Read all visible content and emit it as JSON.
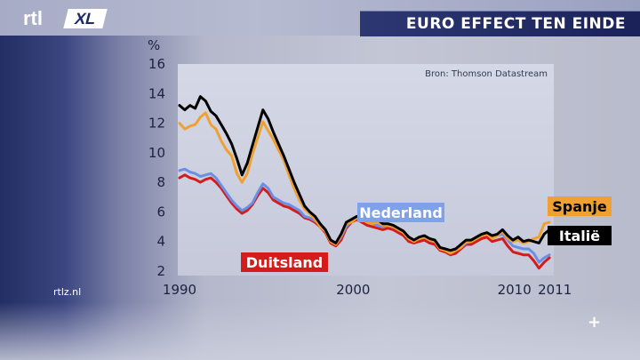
{
  "header": {
    "logo_text": "rtl",
    "logo_badge": "XL",
    "title": "EURO EFFECT TEN EINDE"
  },
  "footer": {
    "site": "rtlz.nl",
    "plus_icon": "plus-icon"
  },
  "colors": {
    "spanje": "#f0a030",
    "italie": "#000000",
    "nederland": "#6a90e6",
    "duitsland": "#d41c1c"
  },
  "chart_data": {
    "type": "line",
    "ylabel": "%",
    "ylim": [
      2,
      16
    ],
    "yticks": [
      2,
      4,
      6,
      8,
      10,
      12,
      14,
      16
    ],
    "xlim": [
      1990,
      2011.5
    ],
    "xtick_labels": [
      {
        "x": 1990,
        "label": "1990"
      },
      {
        "x": 2000,
        "label": "2000"
      },
      {
        "x": 2010,
        "label": "2010"
      },
      {
        "x": 2011,
        "label": "2011"
      }
    ],
    "source": "Bron: Thomson Datastream",
    "grid": false,
    "series": [
      {
        "name": "Nederland",
        "color": "#6a90e6",
        "x": [
          1990.0,
          1990.3,
          1990.6,
          1990.9,
          1991.2,
          1991.5,
          1991.8,
          1992.1,
          1992.4,
          1992.7,
          1993.0,
          1993.3,
          1993.6,
          1993.9,
          1994.2,
          1994.5,
          1994.8,
          1995.1,
          1995.4,
          1995.7,
          1996.0,
          1996.3,
          1996.6,
          1996.9,
          1997.2,
          1997.5,
          1997.8,
          1998.1,
          1998.4,
          1998.7,
          1999.0,
          1999.3,
          1999.6,
          1999.9,
          2000.2,
          2000.5,
          2000.8,
          2001.1,
          2001.4,
          2001.7,
          2002.0,
          2002.3,
          2002.6,
          2002.9,
          2003.2,
          2003.5,
          2003.8,
          2004.1,
          2004.4,
          2004.7,
          2005.0,
          2005.3,
          2005.6,
          2005.9,
          2006.2,
          2006.5,
          2006.8,
          2007.1,
          2007.4,
          2007.7,
          2008.0,
          2008.3,
          2008.6,
          2008.9,
          2009.2,
          2009.5,
          2009.8,
          2010.1,
          2010.4,
          2010.7,
          2011.0,
          2011.3
        ],
        "values": [
          8.8,
          8.9,
          8.7,
          8.6,
          8.4,
          8.5,
          8.6,
          8.3,
          7.8,
          7.3,
          6.8,
          6.4,
          6.1,
          6.3,
          6.6,
          7.3,
          7.9,
          7.6,
          7.0,
          6.8,
          6.6,
          6.5,
          6.3,
          6.1,
          5.7,
          5.6,
          5.4,
          5.2,
          4.8,
          4.1,
          3.8,
          4.3,
          5.0,
          5.4,
          5.6,
          5.5,
          5.3,
          5.2,
          5.1,
          5.0,
          5.1,
          5.0,
          4.8,
          4.6,
          4.2,
          4.1,
          4.2,
          4.3,
          4.1,
          4.0,
          3.6,
          3.5,
          3.3,
          3.4,
          3.6,
          3.9,
          4.0,
          4.2,
          4.4,
          4.5,
          4.3,
          4.4,
          4.5,
          4.1,
          3.7,
          3.6,
          3.5,
          3.5,
          3.2,
          2.6,
          2.9,
          3.1
        ]
      },
      {
        "name": "Duitsland",
        "color": "#d41c1c",
        "x": [
          1990.0,
          1990.3,
          1990.6,
          1990.9,
          1991.2,
          1991.5,
          1991.8,
          1992.1,
          1992.4,
          1992.7,
          1993.0,
          1993.3,
          1993.6,
          1993.9,
          1994.2,
          1994.5,
          1994.8,
          1995.1,
          1995.4,
          1995.7,
          1996.0,
          1996.3,
          1996.6,
          1996.9,
          1997.2,
          1997.5,
          1997.8,
          1998.1,
          1998.4,
          1998.7,
          1999.0,
          1999.3,
          1999.6,
          1999.9,
          2000.2,
          2000.5,
          2000.8,
          2001.1,
          2001.4,
          2001.7,
          2002.0,
          2002.3,
          2002.6,
          2002.9,
          2003.2,
          2003.5,
          2003.8,
          2004.1,
          2004.4,
          2004.7,
          2005.0,
          2005.3,
          2005.6,
          2005.9,
          2006.2,
          2006.5,
          2006.8,
          2007.1,
          2007.4,
          2007.7,
          2008.0,
          2008.3,
          2008.6,
          2008.9,
          2009.2,
          2009.5,
          2009.8,
          2010.1,
          2010.4,
          2010.7,
          2011.0,
          2011.3
        ],
        "values": [
          8.3,
          8.5,
          8.3,
          8.2,
          8.0,
          8.2,
          8.3,
          8.0,
          7.6,
          7.1,
          6.6,
          6.2,
          5.9,
          6.1,
          6.5,
          7.1,
          7.6,
          7.3,
          6.8,
          6.6,
          6.4,
          6.3,
          6.1,
          5.9,
          5.6,
          5.5,
          5.3,
          5.0,
          4.6,
          3.9,
          3.7,
          4.1,
          4.9,
          5.3,
          5.5,
          5.3,
          5.1,
          5.0,
          4.9,
          4.8,
          4.9,
          4.8,
          4.6,
          4.4,
          4.0,
          3.9,
          4.0,
          4.1,
          3.9,
          3.8,
          3.4,
          3.3,
          3.1,
          3.2,
          3.5,
          3.8,
          3.8,
          4.0,
          4.2,
          4.3,
          4.0,
          4.1,
          4.2,
          3.7,
          3.3,
          3.2,
          3.1,
          3.1,
          2.7,
          2.2,
          2.6,
          2.9
        ]
      },
      {
        "name": "Spanje",
        "color": "#f0a030",
        "x": [
          1990.0,
          1990.3,
          1990.6,
          1990.9,
          1991.2,
          1991.5,
          1991.8,
          1992.1,
          1992.4,
          1992.7,
          1993.0,
          1993.3,
          1993.6,
          1993.9,
          1994.2,
          1994.5,
          1994.8,
          1995.1,
          1995.4,
          1995.7,
          1996.0,
          1996.3,
          1996.6,
          1996.9,
          1997.2,
          1997.5,
          1997.8,
          1998.1,
          1998.4,
          1998.7,
          1999.0,
          1999.3,
          1999.6,
          1999.9,
          2000.2,
          2000.5,
          2000.8,
          2001.1,
          2001.4,
          2001.7,
          2002.0,
          2002.3,
          2002.6,
          2002.9,
          2003.2,
          2003.5,
          2003.8,
          2004.1,
          2004.4,
          2004.7,
          2005.0,
          2005.3,
          2005.6,
          2005.9,
          2006.2,
          2006.5,
          2006.8,
          2007.1,
          2007.4,
          2007.7,
          2008.0,
          2008.3,
          2008.6,
          2008.9,
          2009.2,
          2009.5,
          2009.8,
          2010.1,
          2010.4,
          2010.7,
          2011.0,
          2011.3
        ],
        "values": [
          12.0,
          11.6,
          11.8,
          11.9,
          12.4,
          12.7,
          11.9,
          11.6,
          10.8,
          10.2,
          9.8,
          8.6,
          8.0,
          8.6,
          9.9,
          11.0,
          12.1,
          11.5,
          10.9,
          10.2,
          9.5,
          8.5,
          7.6,
          6.8,
          6.2,
          5.9,
          5.5,
          5.0,
          4.7,
          4.0,
          3.8,
          4.4,
          5.2,
          5.3,
          5.6,
          5.5,
          5.3,
          5.2,
          5.3,
          5.1,
          5.1,
          5.0,
          4.8,
          4.6,
          4.2,
          4.0,
          4.2,
          4.3,
          4.1,
          4.0,
          3.5,
          3.4,
          3.2,
          3.4,
          3.6,
          4.0,
          4.0,
          4.2,
          4.4,
          4.5,
          4.2,
          4.4,
          4.7,
          4.2,
          4.0,
          4.1,
          3.9,
          4.0,
          4.2,
          4.3,
          5.2,
          5.3
        ]
      },
      {
        "name": "Italië",
        "color": "#000000",
        "x": [
          1990.0,
          1990.3,
          1990.6,
          1990.9,
          1991.2,
          1991.5,
          1991.8,
          1992.1,
          1992.4,
          1992.7,
          1993.0,
          1993.3,
          1993.6,
          1993.9,
          1994.2,
          1994.5,
          1994.8,
          1995.1,
          1995.4,
          1995.7,
          1996.0,
          1996.3,
          1996.6,
          1996.9,
          1997.2,
          1997.5,
          1997.8,
          1998.1,
          1998.4,
          1998.7,
          1999.0,
          1999.3,
          1999.6,
          1999.9,
          2000.2,
          2000.5,
          2000.8,
          2001.1,
          2001.4,
          2001.7,
          2002.0,
          2002.3,
          2002.6,
          2002.9,
          2003.2,
          2003.5,
          2003.8,
          2004.1,
          2004.4,
          2004.7,
          2005.0,
          2005.3,
          2005.6,
          2005.9,
          2006.2,
          2006.5,
          2006.8,
          2007.1,
          2007.4,
          2007.7,
          2008.0,
          2008.3,
          2008.6,
          2008.9,
          2009.2,
          2009.5,
          2009.8,
          2010.1,
          2010.4,
          2010.7,
          2011.0,
          2011.3
        ],
        "values": [
          13.2,
          12.9,
          13.2,
          13.0,
          13.8,
          13.5,
          12.8,
          12.5,
          11.9,
          11.3,
          10.6,
          9.6,
          8.5,
          9.3,
          10.5,
          11.7,
          12.9,
          12.3,
          11.4,
          10.6,
          9.8,
          8.9,
          8.0,
          7.2,
          6.4,
          6.0,
          5.7,
          5.2,
          4.8,
          4.1,
          3.9,
          4.5,
          5.3,
          5.5,
          5.7,
          5.6,
          5.4,
          5.4,
          5.5,
          5.2,
          5.2,
          5.1,
          4.9,
          4.7,
          4.3,
          4.1,
          4.3,
          4.4,
          4.2,
          4.1,
          3.6,
          3.5,
          3.4,
          3.5,
          3.8,
          4.1,
          4.1,
          4.3,
          4.5,
          4.6,
          4.4,
          4.5,
          4.8,
          4.4,
          4.1,
          4.3,
          4.0,
          4.1,
          4.0,
          3.9,
          4.5,
          4.8
        ]
      }
    ],
    "annotations": [
      {
        "series": "Nederland",
        "text": "Nederland"
      },
      {
        "series": "Duitsland",
        "text": "Duitsland"
      },
      {
        "series": "Spanje",
        "text": "Spanje"
      },
      {
        "series": "Italië",
        "text": "Italië"
      }
    ]
  }
}
